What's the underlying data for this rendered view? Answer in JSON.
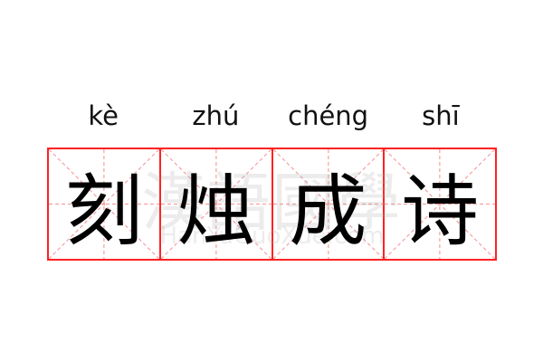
{
  "idiom": {
    "title": "刻烛成诗",
    "items": [
      {
        "pinyin": "kè",
        "char": "刻"
      },
      {
        "pinyin": "zhú",
        "char": "烛"
      },
      {
        "pinyin": "chéng",
        "char": "成"
      },
      {
        "pinyin": "shī",
        "char": "诗"
      }
    ]
  },
  "watermark": {
    "chinese": "漢語國學",
    "latin": "HanYuGuoXue.com"
  },
  "colors": {
    "grid_border": "#ff2222",
    "guide_lines": "#f5a0a0",
    "text": "#000000"
  }
}
